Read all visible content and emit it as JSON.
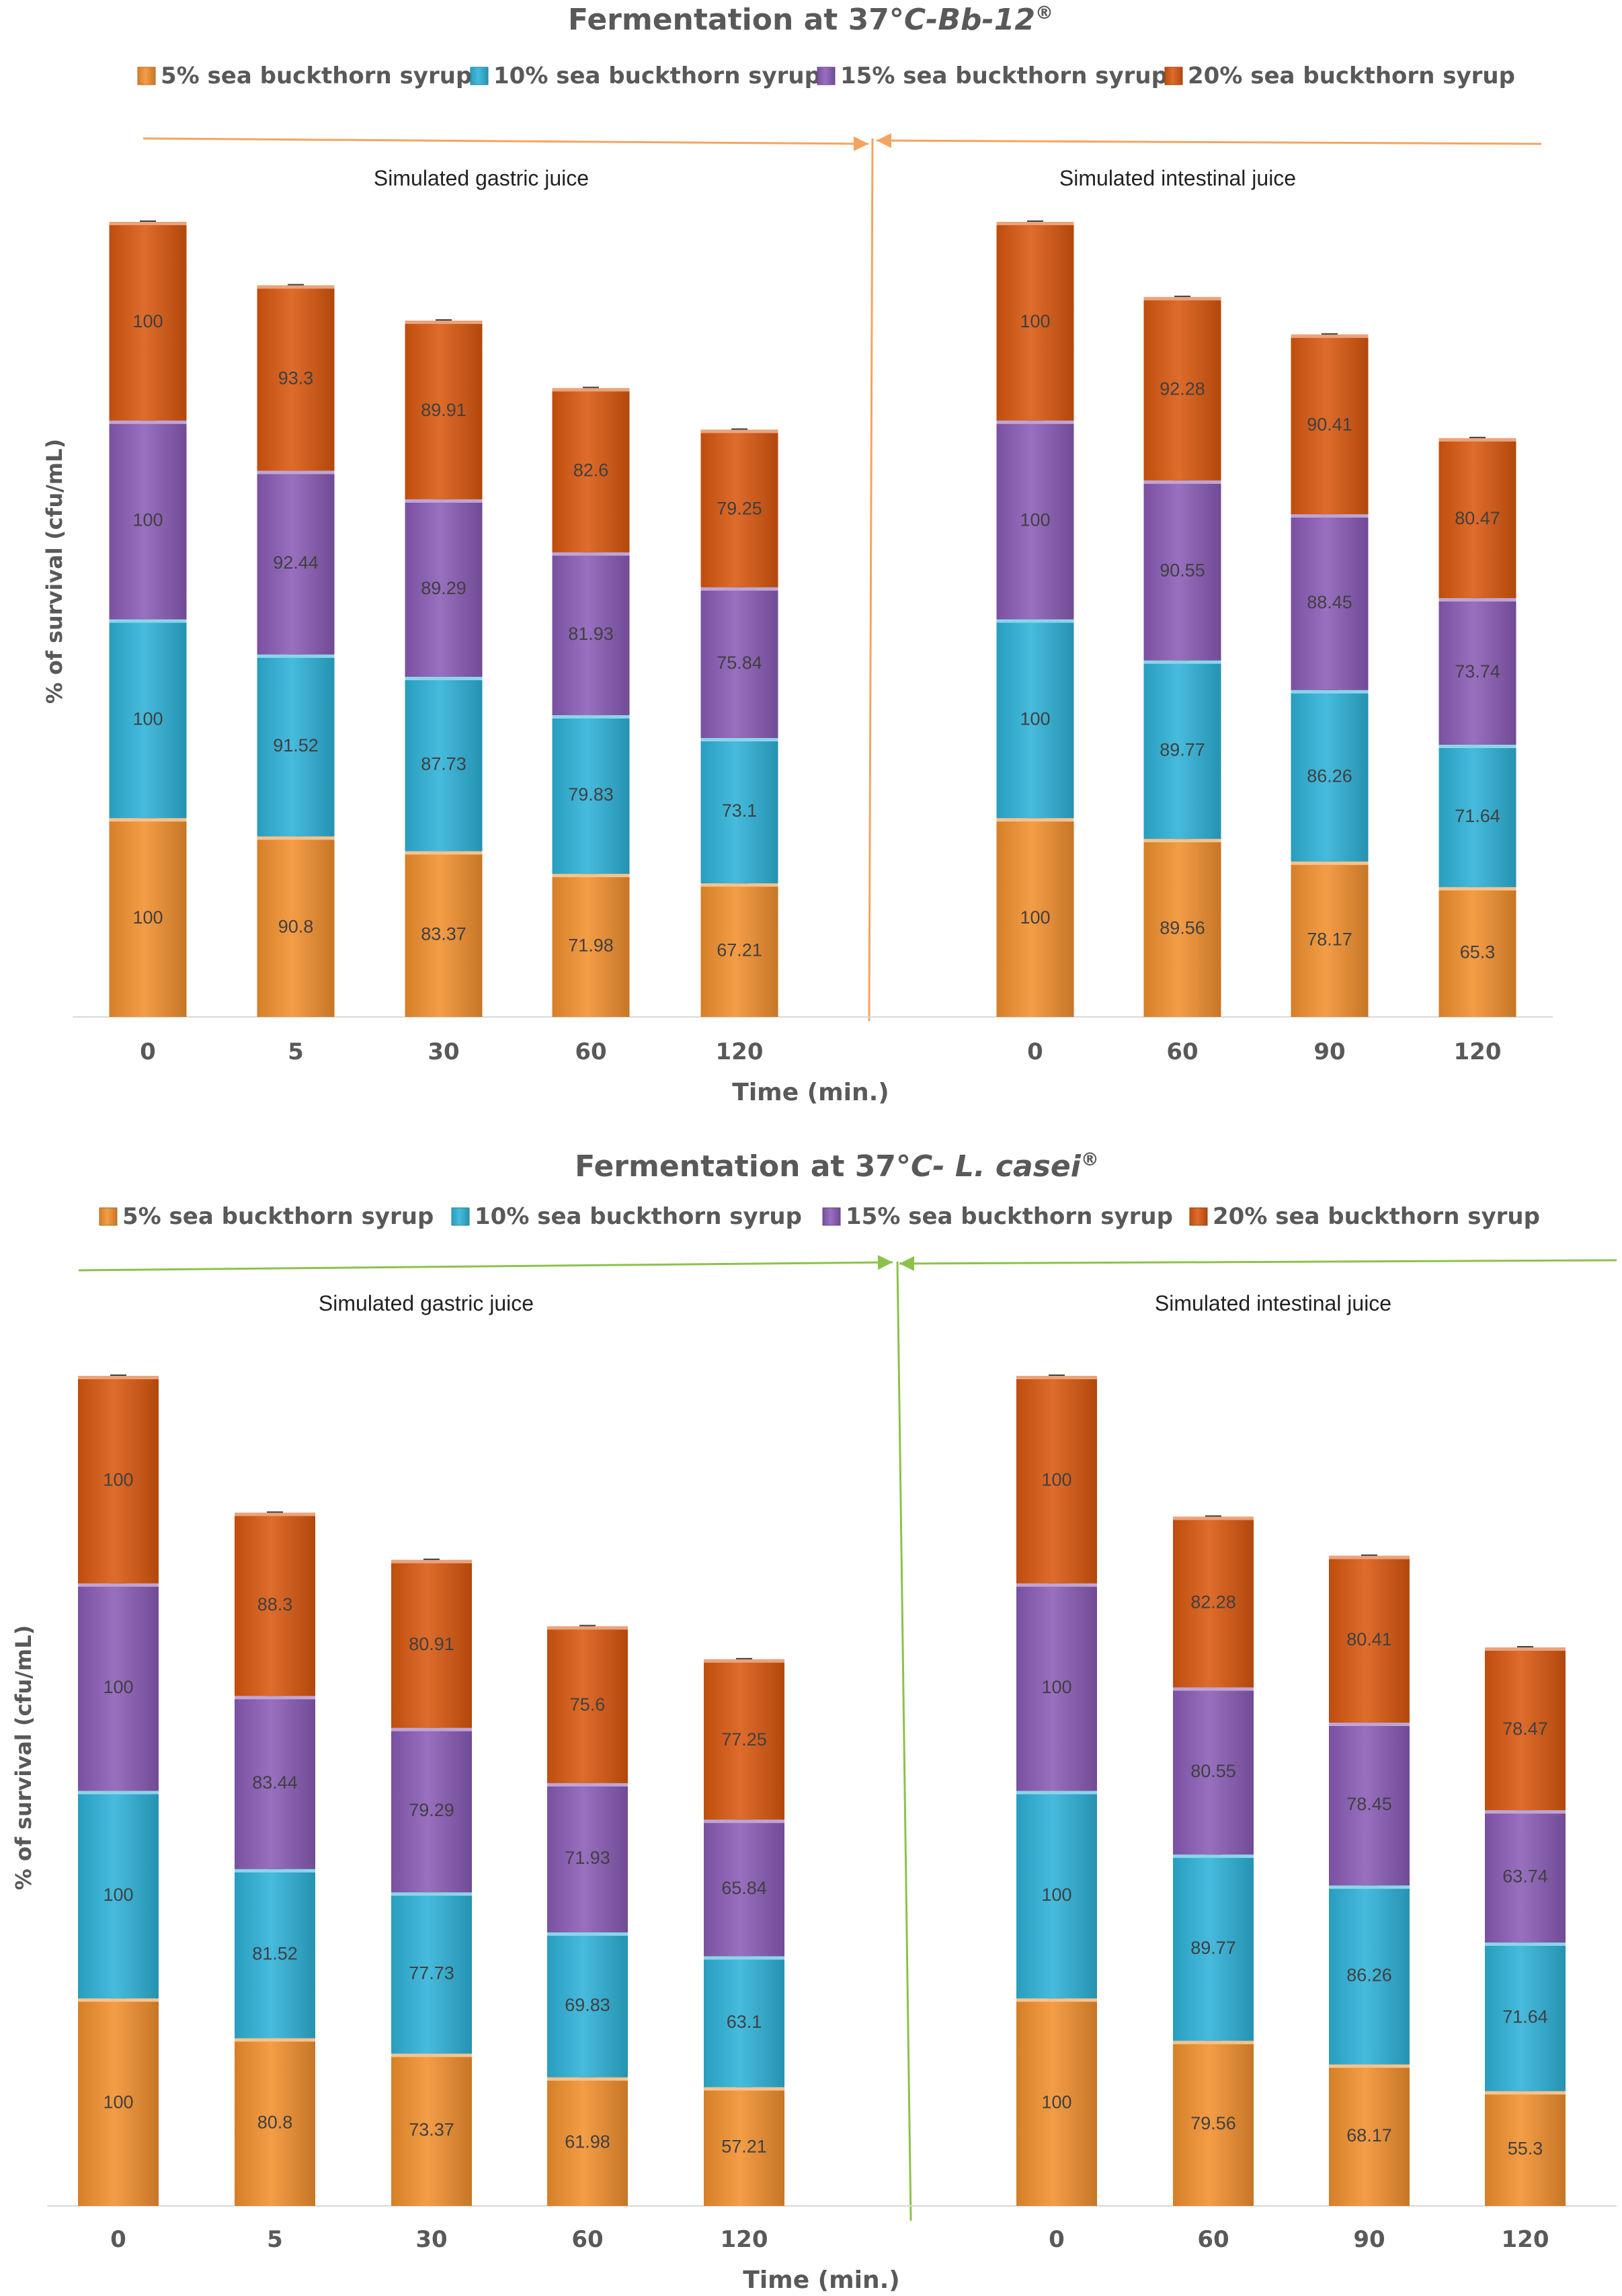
{
  "colors": {
    "s5": "#f2902e",
    "s10": "#2eb2d8",
    "s15": "#8a5cb6",
    "s20": "#d9580f",
    "topArrow": "#f4a460",
    "bottomArrow": "#8cc24a"
  },
  "chart_data": [
    {
      "type": "bar",
      "stacked": true,
      "title_prefix": "Fermentation  at 37°",
      "title_italic": "C-Bb-12",
      "title_sup": "®",
      "ylabel": "% of survival (cfu/mL)",
      "xlabel": "Time (min.)",
      "grid": false,
      "legend_position": "top",
      "ylim": [
        0,
        400
      ],
      "region_labels": [
        "Simulated gastric juice",
        "Simulated intestinal juice"
      ],
      "categories": [
        "0",
        "5",
        "30",
        "60",
        "120",
        "0",
        "60",
        "90",
        "120"
      ],
      "series": [
        {
          "name": "5% sea buckthorn syrup",
          "color_key": "s5",
          "values": [
            100,
            90.8,
            83.37,
            71.98,
            67.21,
            100,
            89.56,
            78.17,
            65.3
          ]
        },
        {
          "name": "10% sea buckthorn syrup",
          "color_key": "s10",
          "values": [
            100,
            91.52,
            87.73,
            79.83,
            73.1,
            100,
            89.77,
            86.26,
            71.64
          ]
        },
        {
          "name": "15% sea buckthorn syrup",
          "color_key": "s15",
          "values": [
            100,
            92.44,
            89.29,
            81.93,
            75.84,
            100,
            90.55,
            88.45,
            73.74
          ]
        },
        {
          "name": "20% sea buckthorn syrup",
          "color_key": "s20",
          "values": [
            100,
            93.3,
            89.91,
            82.6,
            79.25,
            100,
            92.28,
            90.41,
            80.47
          ]
        }
      ]
    },
    {
      "type": "bar",
      "stacked": true,
      "title_prefix": "Fermentation at 37°",
      "title_italic": "C- L. casei",
      "title_sup": "®",
      "ylabel": "% of survival (cfu/mL)",
      "xlabel": "Time (min.)",
      "grid": false,
      "legend_position": "top",
      "ylim": [
        0,
        400
      ],
      "region_labels": [
        "Simulated gastric juice",
        "Simulated intestinal juice"
      ],
      "categories": [
        "0",
        "5",
        "30",
        "60",
        "120",
        "0",
        "60",
        "90",
        "120"
      ],
      "series": [
        {
          "name": "5% sea buckthorn syrup",
          "color_key": "s5",
          "values": [
            100,
            80.8,
            73.37,
            61.98,
            57.21,
            100,
            79.56,
            68.17,
            55.3
          ]
        },
        {
          "name": "10% sea buckthorn syrup",
          "color_key": "s10",
          "values": [
            100,
            81.52,
            77.73,
            69.83,
            63.1,
            100,
            89.77,
            86.26,
            71.64
          ]
        },
        {
          "name": "15% sea buckthorn syrup",
          "color_key": "s15",
          "values": [
            100,
            83.44,
            79.29,
            71.93,
            65.84,
            100,
            80.55,
            78.45,
            63.74
          ]
        },
        {
          "name": "20% sea buckthorn syrup",
          "color_key": "s20",
          "values": [
            100,
            88.3,
            80.91,
            75.6,
            77.25,
            100,
            82.28,
            80.41,
            78.47
          ]
        }
      ]
    }
  ]
}
